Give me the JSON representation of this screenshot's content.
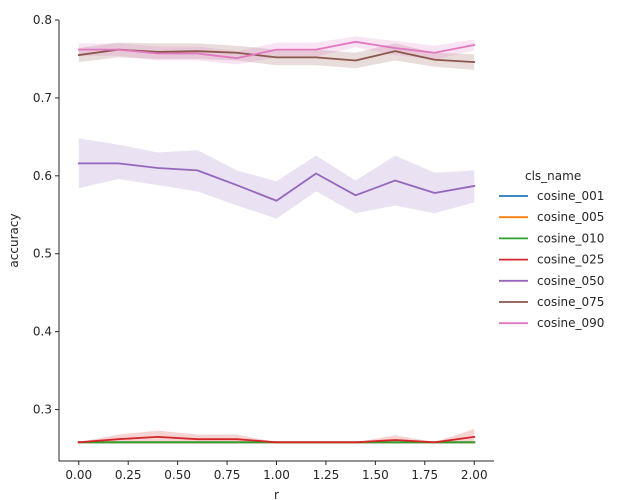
{
  "chart_data": {
    "type": "line",
    "title": "",
    "xlabel": "r",
    "ylabel": "accuracy",
    "xlim": [
      -0.1,
      2.1
    ],
    "ylim": [
      0.234,
      0.8
    ],
    "xticks": [
      0.0,
      0.25,
      0.5,
      0.75,
      1.0,
      1.25,
      1.5,
      1.75,
      2.0
    ],
    "xtick_labels": [
      "0.00",
      "0.25",
      "0.50",
      "0.75",
      "1.00",
      "1.25",
      "1.50",
      "1.75",
      "2.00"
    ],
    "yticks": [
      0.3,
      0.4,
      0.5,
      0.6,
      0.7,
      0.8
    ],
    "ytick_labels": [
      "0.3",
      "0.4",
      "0.5",
      "0.6",
      "0.7",
      "0.8"
    ],
    "grid": false,
    "legend_title": "cls_name",
    "legend_position": "right",
    "x": [
      0.0,
      0.2,
      0.4,
      0.6,
      0.8,
      1.0,
      1.2,
      1.4,
      1.6,
      1.8,
      2.0
    ],
    "series": [
      {
        "name": "cosine_001",
        "color": "#1f77b4",
        "values": [
          0.258,
          0.258,
          0.258,
          0.258,
          0.258,
          0.258,
          0.258,
          0.258,
          0.258,
          0.258,
          0.258
        ],
        "lower": [
          0.258,
          0.258,
          0.258,
          0.258,
          0.258,
          0.258,
          0.258,
          0.258,
          0.258,
          0.258,
          0.258
        ],
        "upper": [
          0.258,
          0.258,
          0.258,
          0.258,
          0.258,
          0.258,
          0.258,
          0.258,
          0.258,
          0.258,
          0.258
        ]
      },
      {
        "name": "cosine_005",
        "color": "#ff7f0e",
        "values": [
          0.258,
          0.258,
          0.258,
          0.258,
          0.258,
          0.258,
          0.258,
          0.258,
          0.258,
          0.258,
          0.258
        ],
        "lower": [
          0.258,
          0.258,
          0.258,
          0.258,
          0.258,
          0.258,
          0.258,
          0.258,
          0.258,
          0.258,
          0.258
        ],
        "upper": [
          0.258,
          0.258,
          0.258,
          0.258,
          0.258,
          0.258,
          0.258,
          0.258,
          0.258,
          0.258,
          0.258
        ]
      },
      {
        "name": "cosine_010",
        "color": "#2ca02c",
        "values": [
          0.258,
          0.258,
          0.258,
          0.258,
          0.258,
          0.258,
          0.258,
          0.258,
          0.258,
          0.258,
          0.258
        ],
        "lower": [
          0.258,
          0.258,
          0.258,
          0.258,
          0.258,
          0.258,
          0.258,
          0.258,
          0.258,
          0.258,
          0.258
        ],
        "upper": [
          0.258,
          0.258,
          0.258,
          0.258,
          0.258,
          0.258,
          0.258,
          0.258,
          0.258,
          0.258,
          0.258
        ]
      },
      {
        "name": "cosine_025",
        "color": "#d62728",
        "values": [
          0.258,
          0.262,
          0.265,
          0.262,
          0.262,
          0.258,
          0.258,
          0.258,
          0.261,
          0.258,
          0.265
        ],
        "lower": [
          0.258,
          0.258,
          0.258,
          0.258,
          0.258,
          0.258,
          0.258,
          0.258,
          0.258,
          0.258,
          0.258
        ],
        "upper": [
          0.258,
          0.268,
          0.273,
          0.268,
          0.268,
          0.258,
          0.258,
          0.258,
          0.267,
          0.258,
          0.275
        ]
      },
      {
        "name": "cosine_050",
        "color": "#9467bd",
        "values": [
          0.616,
          0.616,
          0.61,
          0.607,
          0.588,
          0.568,
          0.603,
          0.575,
          0.594,
          0.578,
          0.587
        ],
        "lower": [
          0.584,
          0.596,
          0.588,
          0.58,
          0.562,
          0.545,
          0.58,
          0.552,
          0.562,
          0.552,
          0.566
        ],
        "upper": [
          0.648,
          0.64,
          0.63,
          0.633,
          0.607,
          0.593,
          0.626,
          0.594,
          0.626,
          0.604,
          0.607
        ]
      },
      {
        "name": "cosine_075",
        "color": "#8c564b",
        "values": [
          0.755,
          0.762,
          0.759,
          0.76,
          0.758,
          0.752,
          0.752,
          0.748,
          0.76,
          0.749,
          0.746
        ],
        "lower": [
          0.746,
          0.752,
          0.75,
          0.75,
          0.748,
          0.742,
          0.742,
          0.738,
          0.748,
          0.74,
          0.736
        ],
        "upper": [
          0.764,
          0.771,
          0.77,
          0.77,
          0.767,
          0.762,
          0.762,
          0.758,
          0.77,
          0.758,
          0.756
        ]
      },
      {
        "name": "cosine_090",
        "color": "#e377c2",
        "values": [
          0.762,
          0.762,
          0.757,
          0.757,
          0.751,
          0.762,
          0.762,
          0.772,
          0.764,
          0.758,
          0.768
        ],
        "lower": [
          0.754,
          0.754,
          0.748,
          0.748,
          0.743,
          0.752,
          0.753,
          0.765,
          0.755,
          0.749,
          0.761
        ],
        "upper": [
          0.77,
          0.77,
          0.766,
          0.766,
          0.76,
          0.771,
          0.771,
          0.779,
          0.773,
          0.767,
          0.775
        ]
      }
    ]
  }
}
